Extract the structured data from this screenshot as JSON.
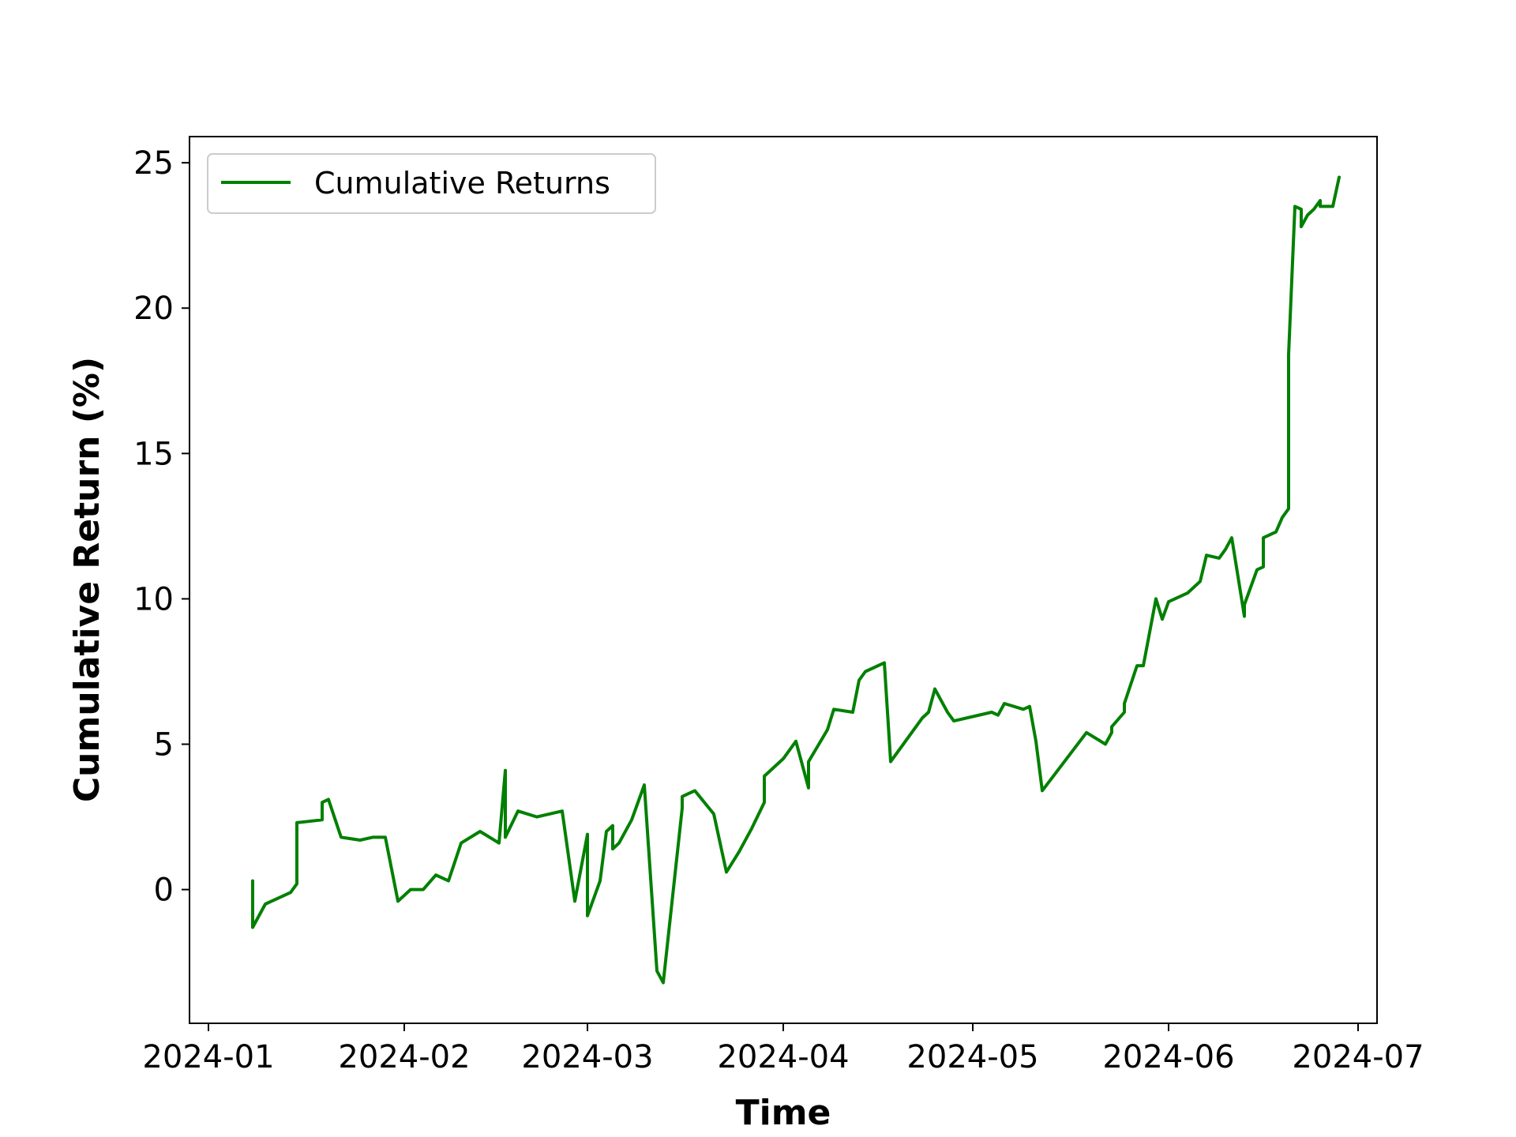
{
  "chart_data": {
    "type": "line",
    "title": "",
    "xlabel": "Time",
    "ylabel": "Cumulative Return (%)",
    "legend": {
      "position": "top-left",
      "entries": [
        "Cumulative Returns"
      ]
    },
    "grid": false,
    "xlim": [
      "2023-12-29",
      "2024-07-04"
    ],
    "ylim": [
      -4.6,
      25.9
    ],
    "x_ticks": [
      "2024-01-01",
      "2024-02-01",
      "2024-03-01",
      "2024-04-01",
      "2024-05-01",
      "2024-06-01",
      "2024-07-01"
    ],
    "x_tick_labels": [
      "2024-01",
      "2024-02",
      "2024-03",
      "2024-04",
      "2024-05",
      "2024-06",
      "2024-07"
    ],
    "y_ticks": [
      0,
      5,
      10,
      15,
      20,
      25
    ],
    "y_tick_labels": [
      "0",
      "5",
      "10",
      "15",
      "20",
      "25"
    ],
    "series": [
      {
        "name": "Cumulative Returns",
        "color": "#008000",
        "x": [
          "2024-01-08",
          "2024-01-08",
          "2024-01-10",
          "2024-01-14",
          "2024-01-15",
          "2024-01-15",
          "2024-01-15",
          "2024-01-19",
          "2024-01-19",
          "2024-01-20",
          "2024-01-22",
          "2024-01-25",
          "2024-01-27",
          "2024-01-29",
          "2024-01-31",
          "2024-02-02",
          "2024-02-04",
          "2024-02-06",
          "2024-02-08",
          "2024-02-10",
          "2024-02-13",
          "2024-02-16",
          "2024-02-17",
          "2024-02-17",
          "2024-02-19",
          "2024-02-22",
          "2024-02-26",
          "2024-02-28",
          "2024-03-01",
          "2024-03-01",
          "2024-03-03",
          "2024-03-04",
          "2024-03-05",
          "2024-03-05",
          "2024-03-06",
          "2024-03-08",
          "2024-03-10",
          "2024-03-12",
          "2024-03-13",
          "2024-03-16",
          "2024-03-16",
          "2024-03-17",
          "2024-03-18",
          "2024-03-21",
          "2024-03-23",
          "2024-03-25",
          "2024-03-27",
          "2024-03-29",
          "2024-03-29",
          "2024-04-01",
          "2024-04-03",
          "2024-04-05",
          "2024-04-05",
          "2024-04-05",
          "2024-04-08",
          "2024-04-09",
          "2024-04-12",
          "2024-04-13",
          "2024-04-14",
          "2024-04-17",
          "2024-04-18",
          "2024-04-19",
          "2024-04-23",
          "2024-04-24",
          "2024-04-25",
          "2024-04-27",
          "2024-04-28",
          "2024-05-04",
          "2024-05-05",
          "2024-05-06",
          "2024-05-09",
          "2024-05-10",
          "2024-05-11",
          "2024-05-12",
          "2024-05-19",
          "2024-05-22",
          "2024-05-23",
          "2024-05-23",
          "2024-05-25",
          "2024-05-25",
          "2024-05-27",
          "2024-05-28",
          "2024-05-30",
          "2024-05-31",
          "2024-06-01",
          "2024-06-04",
          "2024-06-06",
          "2024-06-07",
          "2024-06-09",
          "2024-06-10",
          "2024-06-11",
          "2024-06-13",
          "2024-06-13",
          "2024-06-15",
          "2024-06-16",
          "2024-06-16",
          "2024-06-18",
          "2024-06-19",
          "2024-06-20",
          "2024-06-20",
          "2024-06-20",
          "2024-06-20",
          "2024-06-20",
          "2024-06-21",
          "2024-06-22",
          "2024-06-22",
          "2024-06-23",
          "2024-06-24",
          "2024-06-25",
          "2024-06-25",
          "2024-06-26",
          "2024-06-27",
          "2024-06-28"
        ],
        "y": [
          0.3,
          -1.3,
          -0.5,
          -0.1,
          0.2,
          1.2,
          2.3,
          2.4,
          3.0,
          3.1,
          1.8,
          1.7,
          1.8,
          1.8,
          -0.4,
          0.0,
          0.0,
          0.5,
          0.3,
          1.6,
          2.0,
          1.6,
          4.1,
          1.8,
          2.7,
          2.5,
          2.7,
          -0.4,
          1.9,
          -0.9,
          0.3,
          2.0,
          2.2,
          1.4,
          1.6,
          2.4,
          3.6,
          -2.8,
          -3.2,
          2.8,
          3.2,
          3.3,
          3.4,
          2.6,
          0.6,
          1.3,
          2.1,
          3.0,
          3.9,
          4.5,
          5.1,
          3.5,
          4.0,
          4.4,
          5.5,
          6.2,
          6.1,
          7.2,
          7.5,
          7.8,
          4.4,
          4.7,
          5.9,
          6.1,
          6.9,
          6.1,
          5.8,
          6.1,
          6.0,
          6.4,
          6.2,
          6.3,
          5.1,
          3.4,
          5.4,
          5.0,
          5.4,
          5.6,
          6.1,
          6.4,
          7.7,
          7.7,
          10.0,
          9.3,
          9.9,
          10.2,
          10.6,
          11.5,
          11.4,
          11.7,
          12.1,
          9.4,
          9.8,
          11.0,
          11.1,
          12.1,
          12.3,
          12.8,
          13.1,
          13.5,
          14.8,
          17.0,
          18.4,
          23.5,
          23.4,
          22.8,
          23.2,
          23.4,
          23.7,
          23.5,
          23.5,
          23.5,
          24.5
        ]
      }
    ]
  }
}
